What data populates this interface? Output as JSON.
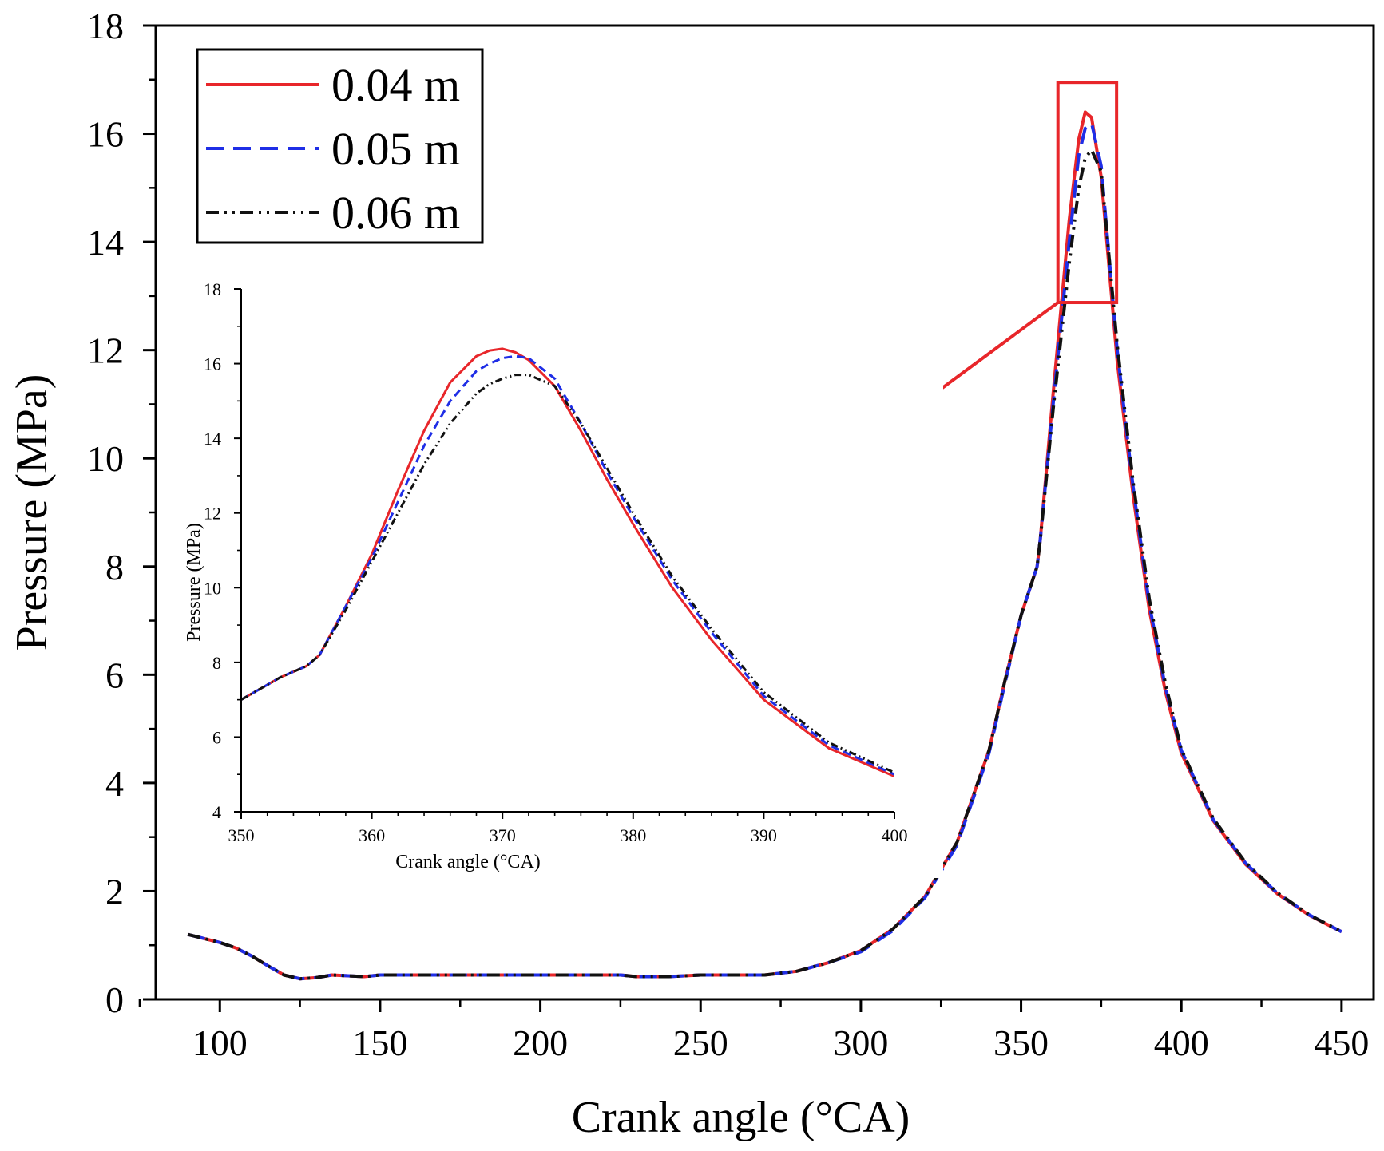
{
  "chart_data": [
    {
      "type": "line",
      "title": "",
      "xlabel": "Crank angle (°CA)",
      "ylabel": "Pressure (MPa)",
      "xlim": [
        80,
        460
      ],
      "ylim": [
        0,
        18
      ],
      "xticks": [
        100,
        150,
        200,
        250,
        300,
        350,
        400,
        450
      ],
      "yticks": [
        0,
        2,
        4,
        6,
        8,
        10,
        12,
        14,
        16,
        18
      ],
      "legend_position": "top-left",
      "series": [
        {
          "name": "0.04 m",
          "color": "#e8262a",
          "style": "solid",
          "x": [
            90,
            100,
            105,
            110,
            115,
            120,
            125,
            130,
            135,
            145,
            150,
            200,
            225,
            230,
            240,
            250,
            270,
            280,
            290,
            300,
            310,
            320,
            330,
            340,
            345,
            350,
            355,
            356,
            360,
            365,
            368,
            370,
            372,
            375,
            380,
            385,
            390,
            395,
            400,
            410,
            420,
            430,
            440,
            450
          ],
          "y": [
            1.2,
            1.05,
            0.95,
            0.8,
            0.62,
            0.45,
            0.38,
            0.4,
            0.45,
            0.42,
            0.45,
            0.45,
            0.45,
            0.42,
            0.42,
            0.45,
            0.45,
            0.52,
            0.68,
            0.9,
            1.3,
            1.9,
            2.9,
            4.6,
            5.9,
            7.1,
            8.0,
            8.5,
            11.2,
            14.4,
            15.9,
            16.4,
            16.3,
            15.2,
            11.8,
            9.3,
            7.2,
            5.7,
            4.55,
            3.3,
            2.5,
            1.95,
            1.55,
            1.25
          ]
        },
        {
          "name": "0.05 m",
          "color": "#1f2ee6",
          "style": "dashed",
          "x": [
            90,
            100,
            105,
            110,
            115,
            120,
            125,
            130,
            135,
            145,
            150,
            200,
            225,
            230,
            240,
            250,
            270,
            280,
            290,
            300,
            310,
            320,
            330,
            340,
            345,
            350,
            355,
            356,
            360,
            365,
            368,
            370,
            372,
            375,
            380,
            385,
            390,
            395,
            400,
            410,
            420,
            430,
            440,
            450
          ],
          "y": [
            1.2,
            1.05,
            0.95,
            0.8,
            0.62,
            0.45,
            0.38,
            0.4,
            0.45,
            0.42,
            0.45,
            0.45,
            0.45,
            0.42,
            0.42,
            0.45,
            0.45,
            0.52,
            0.68,
            0.88,
            1.27,
            1.88,
            2.85,
            4.55,
            5.85,
            7.1,
            8.0,
            8.5,
            11.0,
            14.0,
            15.6,
            16.1,
            16.2,
            15.4,
            12.0,
            9.45,
            7.3,
            5.78,
            4.6,
            3.32,
            2.52,
            1.96,
            1.56,
            1.25
          ]
        },
        {
          "name": "0.06 m",
          "color": "#111111",
          "style": "dash-dot-dot",
          "x": [
            90,
            100,
            105,
            110,
            115,
            120,
            125,
            130,
            135,
            145,
            150,
            200,
            225,
            230,
            240,
            250,
            270,
            280,
            290,
            300,
            310,
            320,
            330,
            340,
            345,
            350,
            355,
            356,
            360,
            365,
            368,
            370,
            372,
            375,
            380,
            385,
            390,
            395,
            400,
            410,
            420,
            430,
            440,
            450
          ],
          "y": [
            1.2,
            1.05,
            0.95,
            0.8,
            0.62,
            0.45,
            0.38,
            0.4,
            0.45,
            0.42,
            0.45,
            0.45,
            0.45,
            0.42,
            0.42,
            0.45,
            0.45,
            0.52,
            0.68,
            0.9,
            1.3,
            1.9,
            2.9,
            4.6,
            5.9,
            7.1,
            8.0,
            8.5,
            10.9,
            13.6,
            15.0,
            15.55,
            15.7,
            15.3,
            12.1,
            9.55,
            7.4,
            5.85,
            4.62,
            3.34,
            2.53,
            1.97,
            1.56,
            1.25
          ]
        }
      ],
      "annotation": "zoom box 362–380 °CA, 12.8–17 MPa, arrow to inset"
    },
    {
      "type": "line",
      "title": "",
      "xlabel": "Crank angle (°CA)",
      "ylabel": "Pressure (MPa)",
      "xlim": [
        350,
        400
      ],
      "ylim": [
        4,
        18
      ],
      "xticks": [
        350,
        360,
        370,
        380,
        390,
        400
      ],
      "yticks": [
        4,
        6,
        8,
        10,
        12,
        14,
        16,
        18
      ],
      "series": [
        {
          "name": "0.04 m",
          "color": "#e8262a",
          "style": "solid",
          "x": [
            350,
            353,
            355,
            356,
            358,
            360,
            362,
            364,
            366,
            368,
            369,
            370,
            371,
            372,
            374,
            376,
            378,
            380,
            383,
            386,
            390,
            395,
            400
          ],
          "y": [
            7.0,
            7.6,
            7.9,
            8.2,
            9.5,
            10.9,
            12.6,
            14.2,
            15.5,
            16.2,
            16.35,
            16.4,
            16.3,
            16.1,
            15.4,
            14.2,
            12.9,
            11.7,
            10.0,
            8.6,
            7.0,
            5.7,
            4.95
          ]
        },
        {
          "name": "0.05 m",
          "color": "#1f2ee6",
          "style": "dashed",
          "x": [
            350,
            353,
            355,
            356,
            358,
            360,
            362,
            364,
            366,
            368,
            369,
            370,
            371,
            372,
            374,
            376,
            378,
            380,
            383,
            386,
            390,
            395,
            400
          ],
          "y": [
            7.0,
            7.6,
            7.9,
            8.2,
            9.5,
            10.8,
            12.3,
            13.8,
            15.0,
            15.8,
            16.0,
            16.15,
            16.2,
            16.15,
            15.6,
            14.4,
            13.1,
            11.9,
            10.2,
            8.8,
            7.1,
            5.78,
            5.0
          ]
        },
        {
          "name": "0.06 m",
          "color": "#111111",
          "style": "dash-dot-dot",
          "x": [
            350,
            353,
            355,
            356,
            358,
            360,
            362,
            364,
            366,
            368,
            369,
            370,
            371,
            372,
            374,
            376,
            378,
            380,
            383,
            386,
            390,
            395,
            400
          ],
          "y": [
            7.0,
            7.6,
            7.9,
            8.2,
            9.4,
            10.7,
            12.0,
            13.3,
            14.4,
            15.2,
            15.45,
            15.6,
            15.7,
            15.7,
            15.4,
            14.4,
            13.2,
            12.0,
            10.3,
            8.9,
            7.2,
            5.85,
            5.05
          ]
        }
      ]
    }
  ]
}
